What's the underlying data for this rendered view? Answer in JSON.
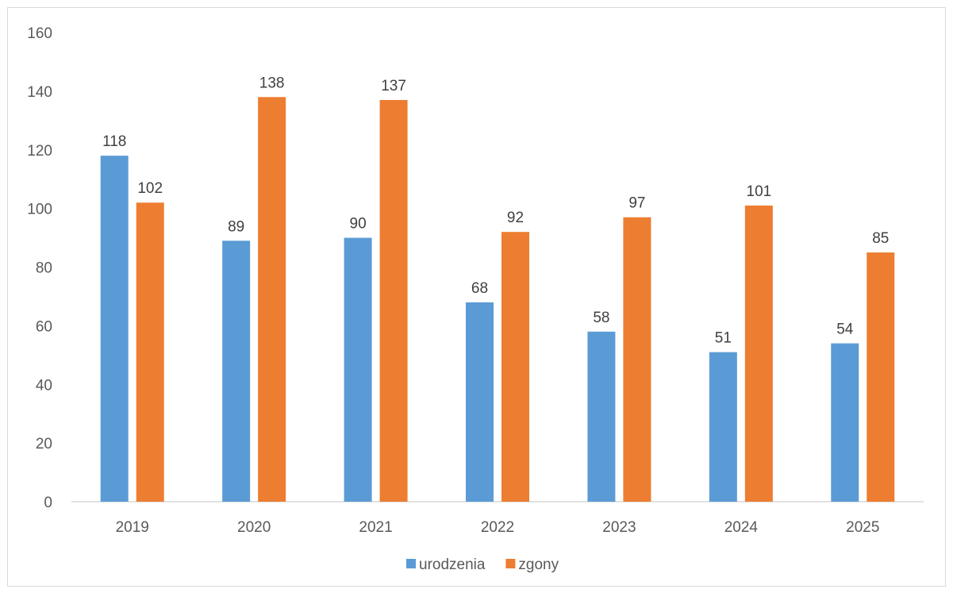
{
  "chart_data": {
    "type": "bar",
    "categories": [
      "2019",
      "2020",
      "2021",
      "2022",
      "2023",
      "2024",
      "2025"
    ],
    "series": [
      {
        "name": "urodzenia",
        "values": [
          118,
          89,
          90,
          68,
          58,
          51,
          54
        ],
        "color": "#5b9bd5"
      },
      {
        "name": "zgony",
        "values": [
          102,
          138,
          137,
          92,
          97,
          101,
          85
        ],
        "color": "#ed7d31"
      }
    ],
    "title": "",
    "xlabel": "",
    "ylabel": "",
    "ylim": [
      0,
      160
    ],
    "yticks": [
      0,
      20,
      40,
      60,
      80,
      100,
      120,
      140,
      160
    ],
    "grid": false,
    "data_labels": true,
    "legend_position": "bottom"
  }
}
